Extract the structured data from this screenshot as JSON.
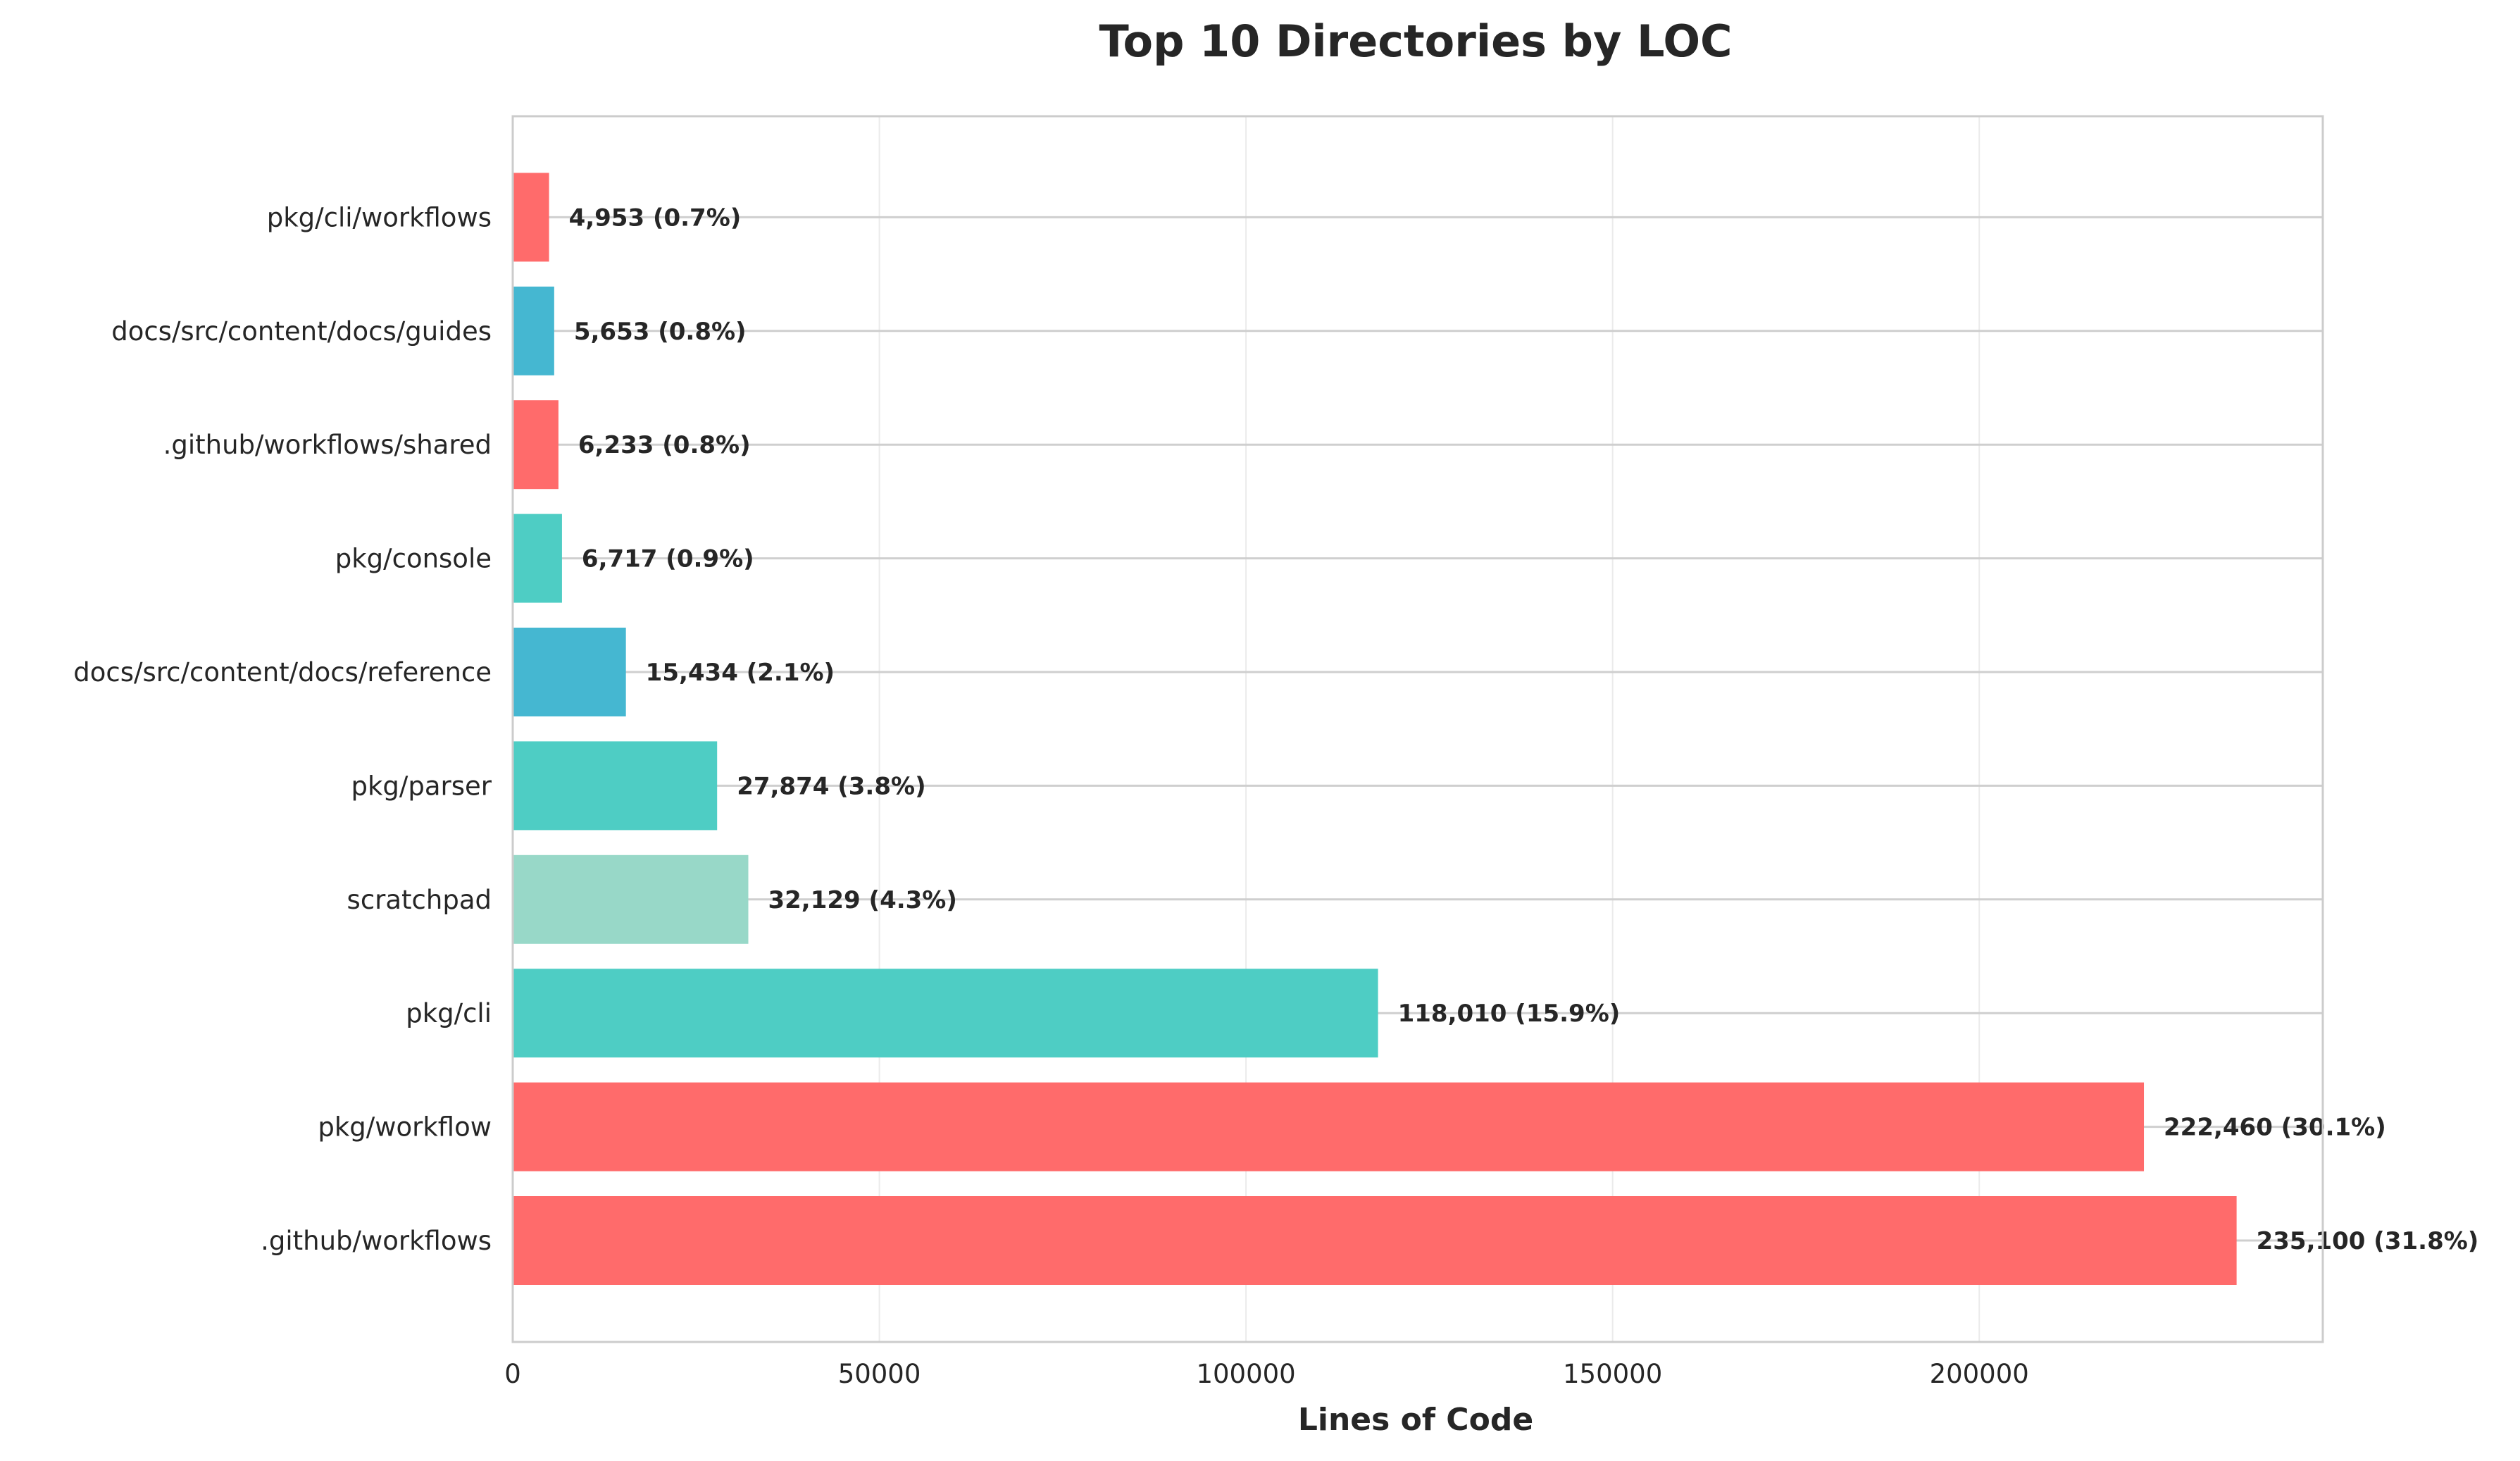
{
  "chart_data": {
    "type": "bar",
    "orientation": "horizontal",
    "title": "Top 10 Directories by LOC",
    "xlabel": "Lines of Code",
    "ylabel": "",
    "xlim": [
      0,
      246855
    ],
    "xticks": [
      0,
      50000,
      100000,
      150000,
      200000
    ],
    "grid": true,
    "categories": [
      ".github/workflows",
      "pkg/workflow",
      "pkg/cli",
      "scratchpad",
      "pkg/parser",
      "docs/src/content/docs/reference",
      "pkg/console",
      ".github/workflows/shared",
      "docs/src/content/docs/guides",
      "pkg/cli/workflows"
    ],
    "values": [
      235100,
      222460,
      118010,
      32129,
      27874,
      15434,
      6717,
      6233,
      5653,
      4953
    ],
    "data_labels": [
      "235,100 (31.8%)",
      "222,460 (30.1%)",
      "118,010 (15.9%)",
      "32,129 (4.3%)",
      "27,874 (3.8%)",
      "15,434 (2.1%)",
      "6,717 (0.9%)",
      "6,233 (0.8%)",
      "5,653 (0.8%)",
      "4,953 (0.7%)"
    ],
    "colors": [
      "#FF6B6B",
      "#FF6B6B",
      "#4ECDC4",
      "#98D8C8",
      "#4ECDC4",
      "#45B7D1",
      "#4ECDC4",
      "#FF6B6B",
      "#45B7D1",
      "#FF6B6B"
    ]
  }
}
